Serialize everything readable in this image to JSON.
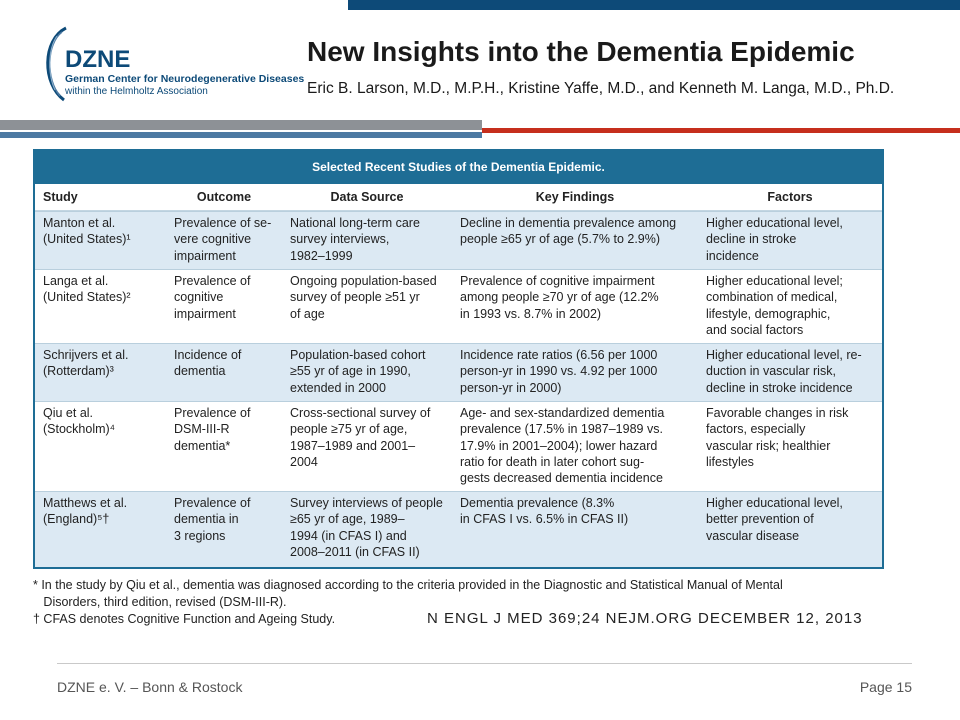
{
  "header": {
    "logo_brand": "DZNE",
    "logo_line1": "German Center for Neurodegenerative Diseases",
    "logo_line2": "within the Helmholtz Association",
    "title": "New Insights into the Dementia Epidemic",
    "authors": "Eric B. Larson, M.D., M.P.H., Kristine Yaffe, M.D., and Kenneth M. Langa, M.D., Ph.D."
  },
  "colors": {
    "brand_blue": "#0d4a78",
    "table_blue": "#1e6d95",
    "stripe_red": "#c62f1d",
    "stripe_grey": "#8d9196",
    "row_shade": "#dce9f3"
  },
  "table": {
    "title": "Selected Recent Studies of the Dementia Epidemic.",
    "columns": [
      "Study",
      "Outcome",
      "Data Source",
      "Key Findings",
      "Factors"
    ],
    "rows": [
      [
        "Manton et al.\n    (United States)¹",
        "Prevalence of se-\n    vere cognitive\n    impairment",
        "National long-term care\n    survey interviews,\n    1982–1999",
        "Decline in dementia prevalence among\n    people ≥65 yr of age (5.7% to 2.9%)",
        "Higher educational level,\n    decline in stroke\n    incidence"
      ],
      [
        "Langa et al.\n    (United States)²",
        "Prevalence of\n    cognitive\n    impairment",
        "Ongoing population-based\n    survey of people ≥51 yr\n    of age",
        "Prevalence of cognitive impairment\n    among people ≥70 yr of age (12.2%\n    in 1993 vs. 8.7% in 2002)",
        "Higher educational level;\n    combination of medical,\n    lifestyle, demographic,\n    and social factors"
      ],
      [
        "Schrijvers et al.\n    (Rotterdam)³",
        "Incidence of\n    dementia",
        "Population-based cohort\n    ≥55 yr of age in 1990,\n    extended in 2000",
        "Incidence rate ratios (6.56 per 1000\n    person-yr in 1990 vs. 4.92 per 1000\n    person-yr in 2000)",
        "Higher educational level, re-\n    duction in vascular risk,\n    decline in stroke incidence"
      ],
      [
        "Qiu et al.\n    (Stockholm)⁴",
        "Prevalence of\n    DSM-III-R\n    dementia*",
        "Cross-sectional survey of\n    people ≥75 yr of age,\n    1987–1989 and 2001–\n    2004",
        "Age- and sex-standardized dementia\n    prevalence (17.5% in 1987–1989 vs.\n    17.9% in 2001–2004); lower hazard\n    ratio for death in later cohort sug-\n    gests decreased dementia incidence",
        "Favorable changes in risk\n    factors, especially\n    vascular risk; healthier\n    lifestyles"
      ],
      [
        "Matthews et al.\n    (England)⁵†",
        "Prevalence of\n    dementia in\n    3 regions",
        "Survey interviews of people\n    ≥65 yr of age, 1989–\n    1994 (in CFAS I) and\n    2008–2011 (in CFAS II)",
        "Dementia prevalence (8.3%\n    in CFAS I vs. 6.5% in CFAS II)",
        "Higher educational level,\n    better prevention of\n    vascular disease"
      ]
    ]
  },
  "footnotes": {
    "note1_line1": "* In the study by Qiu et al., dementia was diagnosed according to the criteria provided in the Diagnostic and Statistical Manual of Mental",
    "note1_line2": "   Disorders, third edition, revised (DSM-III-R).",
    "note2": "† CFAS denotes Cognitive Function and Ageing Study.",
    "citation": "N ENGL J MED 369;24   NEJM.ORG   DECEMBER 12, 2013"
  },
  "footer": {
    "left": "DZNE e. V. – Bonn & Rostock",
    "right": "Page 15"
  }
}
